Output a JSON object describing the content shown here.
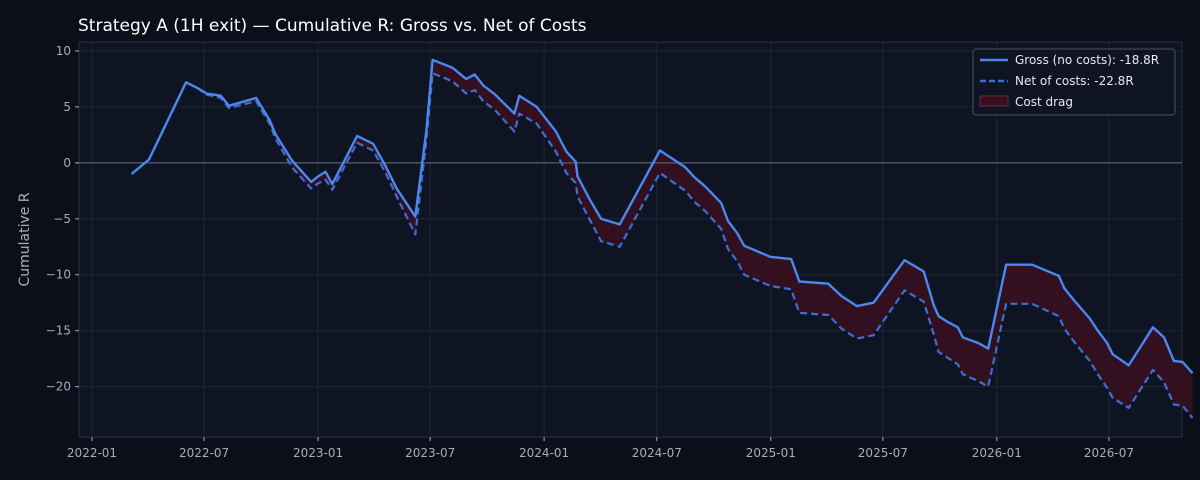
{
  "chart_data": {
    "type": "line",
    "title": "Strategy A (1H exit) — Cumulative R: Gross vs. Net of Costs",
    "xlabel": "",
    "ylabel": "Cumulative R",
    "xlim": [
      "2021-12-11",
      "2026-10-27"
    ],
    "ylim": [
      -24.5,
      10.8
    ],
    "x_ticks": [
      "2022-01",
      "2022-07",
      "2023-01",
      "2023-07",
      "2024-01",
      "2024-07",
      "2025-01",
      "2025-07",
      "2026-01",
      "2026-07"
    ],
    "y_ticks": [
      10,
      5,
      0,
      -5,
      -10,
      -15,
      -20
    ],
    "y_tick_labels": [
      "10",
      "5",
      "0",
      "−5",
      "−10",
      "−15",
      "−20"
    ],
    "grid": true,
    "zero_line": true,
    "legend_position": "top-right",
    "legend": [
      {
        "label": "Gross (no costs): -18.8R",
        "style": "solid"
      },
      {
        "label": "Net of costs: -22.8R",
        "style": "dashed"
      },
      {
        "label": "Cost drag",
        "style": "fill"
      }
    ],
    "colors": {
      "gross": "#4a88f0",
      "net": "#3b6fd4",
      "fill": "#3a0f1e",
      "background": "#0b0f1a",
      "grid": "#1f2636",
      "zero_line": "#56606f",
      "text": "#a6adbb",
      "title": "#ffffff"
    },
    "series": [
      {
        "name": "Gross (no costs): -18.8R",
        "points": [
          [
            "2022-03-06",
            -1.0
          ],
          [
            "2022-04-03",
            0.3
          ],
          [
            "2022-06-02",
            7.2
          ],
          [
            "2022-06-20",
            6.7
          ],
          [
            "2022-07-05",
            6.2
          ],
          [
            "2022-07-28",
            6.0
          ],
          [
            "2022-08-10",
            5.1
          ],
          [
            "2022-09-23",
            5.8
          ],
          [
            "2022-10-15",
            3.8
          ],
          [
            "2022-10-24",
            2.6
          ],
          [
            "2022-11-20",
            0.2
          ],
          [
            "2022-12-21",
            -1.7
          ],
          [
            "2022-12-30",
            -1.3
          ],
          [
            "2023-01-13",
            -0.8
          ],
          [
            "2023-01-24",
            -1.9
          ],
          [
            "2023-03-05",
            2.4
          ],
          [
            "2023-03-31",
            1.7
          ],
          [
            "2023-04-20",
            -0.3
          ],
          [
            "2023-05-08",
            -2.3
          ],
          [
            "2023-06-07",
            -4.8
          ],
          [
            "2023-06-25",
            2.9
          ],
          [
            "2023-07-05",
            9.2
          ],
          [
            "2023-08-06",
            8.5
          ],
          [
            "2023-08-28",
            7.5
          ],
          [
            "2023-09-11",
            7.9
          ],
          [
            "2023-09-25",
            6.9
          ],
          [
            "2023-10-14",
            6.1
          ],
          [
            "2023-11-14",
            4.4
          ],
          [
            "2023-11-22",
            6.0
          ],
          [
            "2023-12-20",
            5.0
          ],
          [
            "2024-01-20",
            2.8
          ],
          [
            "2024-02-06",
            1.0
          ],
          [
            "2024-02-21",
            0.1
          ],
          [
            "2024-02-24",
            -1.2
          ],
          [
            "2024-03-14",
            -3.2
          ],
          [
            "2024-04-02",
            -5.0
          ],
          [
            "2024-05-02",
            -5.5
          ],
          [
            "2024-07-06",
            1.1
          ],
          [
            "2024-08-16",
            -0.4
          ],
          [
            "2024-08-31",
            -1.3
          ],
          [
            "2024-09-17",
            -2.1
          ],
          [
            "2024-10-13",
            -3.6
          ],
          [
            "2024-10-24",
            -5.2
          ],
          [
            "2024-11-08",
            -6.3
          ],
          [
            "2024-11-19",
            -7.4
          ],
          [
            "2024-12-31",
            -8.4
          ],
          [
            "2025-02-03",
            -8.6
          ],
          [
            "2025-02-16",
            -10.6
          ],
          [
            "2025-04-04",
            -10.8
          ],
          [
            "2025-04-25",
            -11.9
          ],
          [
            "2025-05-20",
            -12.8
          ],
          [
            "2025-06-16",
            -12.5
          ],
          [
            "2025-08-05",
            -8.7
          ],
          [
            "2025-09-05",
            -9.7
          ],
          [
            "2025-09-21",
            -12.7
          ],
          [
            "2025-09-29",
            -13.7
          ],
          [
            "2025-10-13",
            -14.2
          ],
          [
            "2025-10-30",
            -14.7
          ],
          [
            "2025-11-07",
            -15.6
          ],
          [
            "2025-12-02",
            -16.1
          ],
          [
            "2025-12-18",
            -16.6
          ],
          [
            "2026-01-16",
            -9.1
          ],
          [
            "2026-02-27",
            -9.1
          ],
          [
            "2026-04-11",
            -10.1
          ],
          [
            "2026-04-20",
            -11.2
          ],
          [
            "2026-05-06",
            -12.3
          ],
          [
            "2026-05-31",
            -13.9
          ],
          [
            "2026-06-13",
            -15.0
          ],
          [
            "2026-06-28",
            -16.1
          ],
          [
            "2026-07-07",
            -17.1
          ],
          [
            "2026-08-02",
            -18.1
          ],
          [
            "2026-09-10",
            -14.7
          ],
          [
            "2026-09-28",
            -15.6
          ],
          [
            "2026-10-14",
            -17.7
          ],
          [
            "2026-10-28",
            -17.8
          ],
          [
            "2026-11-13",
            -18.8
          ]
        ]
      },
      {
        "name": "Net of costs: -22.8R",
        "points": [
          [
            "2022-03-06",
            -1.0
          ],
          [
            "2022-04-03",
            0.3
          ],
          [
            "2022-06-02",
            7.2
          ],
          [
            "2022-06-20",
            6.7
          ],
          [
            "2022-07-05",
            6.1
          ],
          [
            "2022-07-28",
            5.8
          ],
          [
            "2022-08-10",
            4.9
          ],
          [
            "2022-09-23",
            5.5
          ],
          [
            "2022-10-15",
            3.5
          ],
          [
            "2022-10-24",
            2.2
          ],
          [
            "2022-11-20",
            -0.4
          ],
          [
            "2022-12-21",
            -2.3
          ],
          [
            "2022-12-30",
            -1.9
          ],
          [
            "2023-01-13",
            -1.5
          ],
          [
            "2023-01-24",
            -2.4
          ],
          [
            "2023-03-05",
            1.8
          ],
          [
            "2023-03-31",
            1.1
          ],
          [
            "2023-04-20",
            -0.9
          ],
          [
            "2023-05-08",
            -3.0
          ],
          [
            "2023-06-07",
            -6.4
          ],
          [
            "2023-06-25",
            2.0
          ],
          [
            "2023-07-05",
            8.0
          ],
          [
            "2023-08-06",
            7.3
          ],
          [
            "2023-08-28",
            6.2
          ],
          [
            "2023-09-11",
            6.5
          ],
          [
            "2023-09-25",
            5.5
          ],
          [
            "2023-10-14",
            4.7
          ],
          [
            "2023-11-14",
            2.8
          ],
          [
            "2023-11-22",
            4.4
          ],
          [
            "2023-12-20",
            3.5
          ],
          [
            "2024-01-20",
            1.0
          ],
          [
            "2024-02-06",
            -0.9
          ],
          [
            "2024-02-21",
            -1.8
          ],
          [
            "2024-02-24",
            -3.0
          ],
          [
            "2024-03-14",
            -5.0
          ],
          [
            "2024-04-02",
            -7.0
          ],
          [
            "2024-05-02",
            -7.5
          ],
          [
            "2024-07-06",
            -0.9
          ],
          [
            "2024-08-16",
            -2.5
          ],
          [
            "2024-08-31",
            -3.5
          ],
          [
            "2024-09-17",
            -4.3
          ],
          [
            "2024-10-13",
            -5.9
          ],
          [
            "2024-10-24",
            -7.7
          ],
          [
            "2024-11-08",
            -8.8
          ],
          [
            "2024-11-19",
            -10.0
          ],
          [
            "2024-12-31",
            -11.0
          ],
          [
            "2025-02-03",
            -11.3
          ],
          [
            "2025-02-16",
            -13.4
          ],
          [
            "2025-04-04",
            -13.6
          ],
          [
            "2025-04-25",
            -14.8
          ],
          [
            "2025-05-20",
            -15.7
          ],
          [
            "2025-06-16",
            -15.4
          ],
          [
            "2025-08-05",
            -11.4
          ],
          [
            "2025-09-05",
            -12.4
          ],
          [
            "2025-09-21",
            -15.3
          ],
          [
            "2025-09-29",
            -16.9
          ],
          [
            "2025-10-13",
            -17.4
          ],
          [
            "2025-10-30",
            -18.0
          ],
          [
            "2025-11-07",
            -18.9
          ],
          [
            "2025-12-02",
            -19.5
          ],
          [
            "2025-12-18",
            -20.0
          ],
          [
            "2026-01-16",
            -12.6
          ],
          [
            "2026-02-27",
            -12.6
          ],
          [
            "2026-04-11",
            -13.7
          ],
          [
            "2026-04-20",
            -14.8
          ],
          [
            "2026-05-06",
            -16.0
          ],
          [
            "2026-05-31",
            -17.7
          ],
          [
            "2026-06-13",
            -18.9
          ],
          [
            "2026-06-28",
            -20.1
          ],
          [
            "2026-07-07",
            -21.0
          ],
          [
            "2026-08-02",
            -21.9
          ],
          [
            "2026-09-10",
            -18.5
          ],
          [
            "2026-09-28",
            -19.6
          ],
          [
            "2026-10-14",
            -21.6
          ],
          [
            "2026-10-28",
            -21.7
          ],
          [
            "2026-11-13",
            -22.8
          ]
        ]
      }
    ]
  }
}
